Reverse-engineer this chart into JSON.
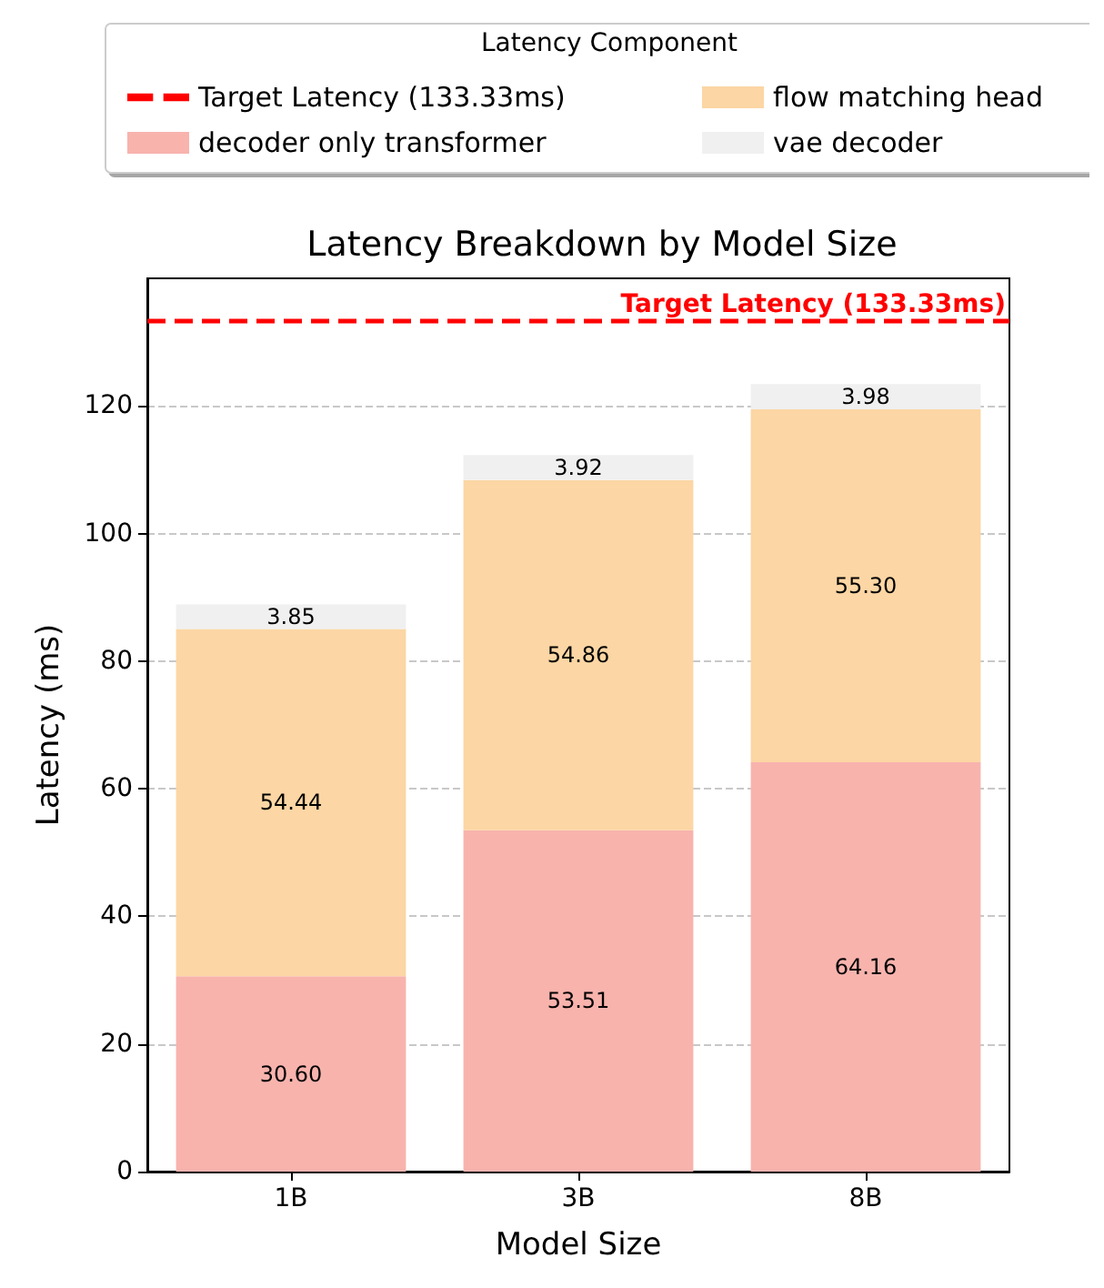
{
  "chart_data": {
    "type": "bar",
    "title": "Latency Breakdown by Model Size",
    "xlabel": "Model Size",
    "ylabel": "Latency (ms)",
    "legend_title": "Latency Component",
    "categories": [
      "1B",
      "3B",
      "8B"
    ],
    "stacked": true,
    "series": [
      {
        "name": "decoder only transformer",
        "color": "#f8b3ad",
        "values": [
          30.6,
          53.51,
          64.16
        ],
        "value_labels": [
          "30.60",
          "53.51",
          "64.16"
        ]
      },
      {
        "name": "flow matching head",
        "color": "#fcd6a4",
        "values": [
          54.44,
          54.86,
          55.3
        ],
        "value_labels": [
          "54.44",
          "54.86",
          "55.30"
        ]
      },
      {
        "name": "vae decoder",
        "color": "#f0f0f0",
        "values": [
          3.85,
          3.92,
          3.98
        ],
        "value_labels": [
          "3.85",
          "3.92",
          "3.98"
        ]
      }
    ],
    "ref_lines": [
      {
        "axis": "y",
        "value": 133.33,
        "label": "Target Latency (133.33ms)",
        "color": "#ff0000",
        "line_style": "dashed"
      }
    ],
    "ylim": [
      0,
      140
    ],
    "yticks": [
      0,
      20,
      40,
      60,
      80,
      100,
      120
    ],
    "grid": "y",
    "legend": "top"
  }
}
